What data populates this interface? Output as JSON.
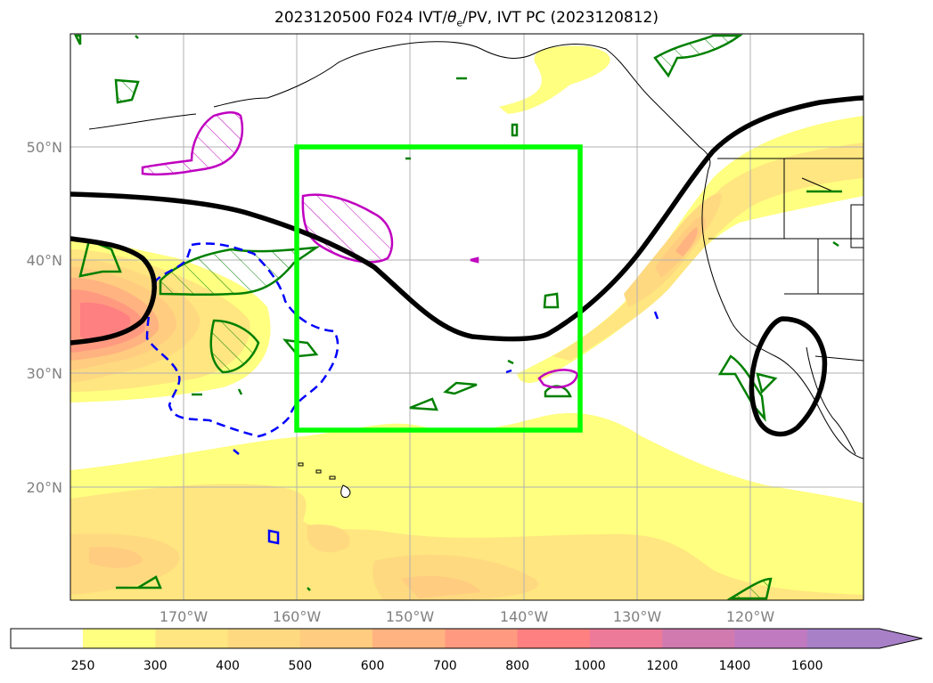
{
  "title": {
    "prefix": "2023120500 F024 IVT/",
    "theta_symbol": "θ",
    "theta_sub": "e",
    "suffix": "/PV, IVT PC (2023120812)"
  },
  "lat_labels": [
    "50°N",
    "40°N",
    "30°N",
    "20°N"
  ],
  "lon_labels": [
    "170°W",
    "160°W",
    "150°W",
    "140°W",
    "130°W",
    "120°W"
  ],
  "colorbar": {
    "ticks": [
      "250",
      "300",
      "400",
      "500",
      "600",
      "700",
      "800",
      "1000",
      "1200",
      "1400",
      "1600"
    ],
    "colors": [
      "#ffff80",
      "#ffe680",
      "#ffd980",
      "#ffcc80",
      "#ffb380",
      "#ff9a80",
      "#ff8080",
      "#ee7a9a",
      "#d07ab0",
      "#c07ac0",
      "#a880c8"
    ]
  },
  "colors": {
    "trough_line": "#000000",
    "box": "#00ff00",
    "green_contour": "#008000",
    "magenta_contour": "#c000c0",
    "blue_contour": "#0000ff"
  }
}
